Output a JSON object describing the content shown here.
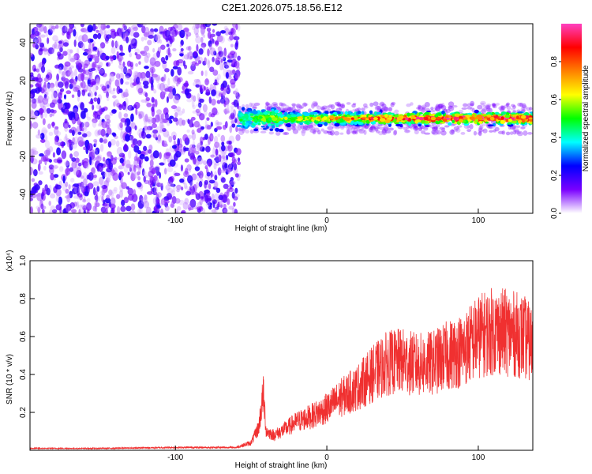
{
  "title": "C2E1.2026.075.18.56.E12",
  "chart_data": [
    {
      "type": "heatmap",
      "xlabel": "Height of straight line (km)",
      "ylabel": "Frequency (Hz)",
      "xlim": [
        -196,
        136
      ],
      "ylim": [
        -50,
        50
      ],
      "xticks": [
        -100,
        0,
        100
      ],
      "yticks": [
        -40,
        -20,
        0,
        20,
        40
      ],
      "colorbar": {
        "label": "Normalized spectral amplitude",
        "range": [
          0,
          1
        ],
        "ticks": [
          0.0,
          0.2,
          0.4,
          0.6,
          0.8
        ],
        "tick_labels": [
          "0.0",
          "0.2",
          "0.4",
          "0.6",
          "0.8"
        ],
        "colormap": [
          "#ffffff",
          "#7a00ff",
          "#0000ff",
          "#00ffff",
          "#00ff00",
          "#ffff00",
          "#ff8000",
          "#ff0000",
          "#ff40c0"
        ]
      },
      "regions": [
        {
          "x_from": -196,
          "x_to": -58,
          "description_level": "noise",
          "amplitude_range": [
            0.0,
            0.2
          ]
        },
        {
          "x_from": -58,
          "x_to": 136,
          "freq_center": 0,
          "freq_halfwidth": 4,
          "amplitude_range": [
            0.2,
            1.0
          ]
        }
      ]
    },
    {
      "type": "line",
      "xlabel": "Height of straight line (km)",
      "ylabel": "SNR (10 * v/v)",
      "y_multiplier": "(x10⁴)",
      "xlim": [
        -196,
        136
      ],
      "ylim": [
        0,
        1.0
      ],
      "xticks": [
        -100,
        0,
        100
      ],
      "yticks": [
        0.2,
        0.4,
        0.6,
        0.8,
        1.0
      ],
      "color": "#f03030",
      "series": [
        {
          "x": [
            -196,
            -150,
            -100,
            -60,
            -50,
            -45,
            -42,
            -40,
            -35,
            -30,
            -20,
            -10,
            0,
            10,
            20,
            30,
            40,
            50,
            60,
            70,
            80,
            90,
            100,
            110,
            120,
            130,
            136
          ],
          "values": [
            0.01,
            0.01,
            0.015,
            0.015,
            0.04,
            0.12,
            0.3,
            0.1,
            0.08,
            0.1,
            0.15,
            0.18,
            0.22,
            0.28,
            0.33,
            0.4,
            0.46,
            0.47,
            0.45,
            0.46,
            0.5,
            0.53,
            0.6,
            0.63,
            0.62,
            0.6,
            0.55
          ]
        }
      ]
    }
  ]
}
